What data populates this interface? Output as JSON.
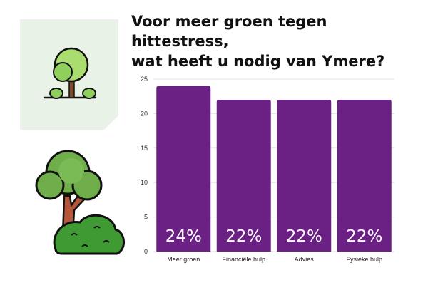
{
  "header": {
    "title_line1": "Voor meer groen tegen hittestress,",
    "title_line2": "wat heeft u nodig van Ymere?"
  },
  "icons": {
    "card_icon": "tree-icon",
    "illustration": "tree-bush-illustration"
  },
  "colors": {
    "bar": "#6b2184",
    "card_bg": "#e8f2e6",
    "leaf_light": "#a9dd6f",
    "leaf_dark": "#6fae4a",
    "gridline": "#e3e3e3"
  },
  "chart_data": {
    "type": "bar",
    "title": "",
    "xlabel": "",
    "ylabel": "",
    "categories": [
      "Meer groen",
      "Financiële hulp",
      "Advies",
      "Fysieke hulp"
    ],
    "values": [
      24,
      22,
      22,
      22
    ],
    "data_labels": [
      "24%",
      "22%",
      "22%",
      "22%"
    ],
    "ylim": [
      0,
      25
    ],
    "yticks": [
      0,
      5,
      10,
      15,
      20,
      25
    ],
    "grid": true,
    "legend": "none"
  }
}
